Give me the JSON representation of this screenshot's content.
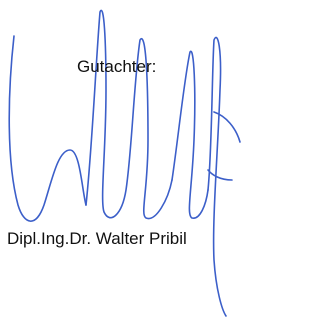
{
  "document": {
    "title": "Gutachter:",
    "signatory": "Dipl.Ing.Dr. Walter Pribil"
  }
}
